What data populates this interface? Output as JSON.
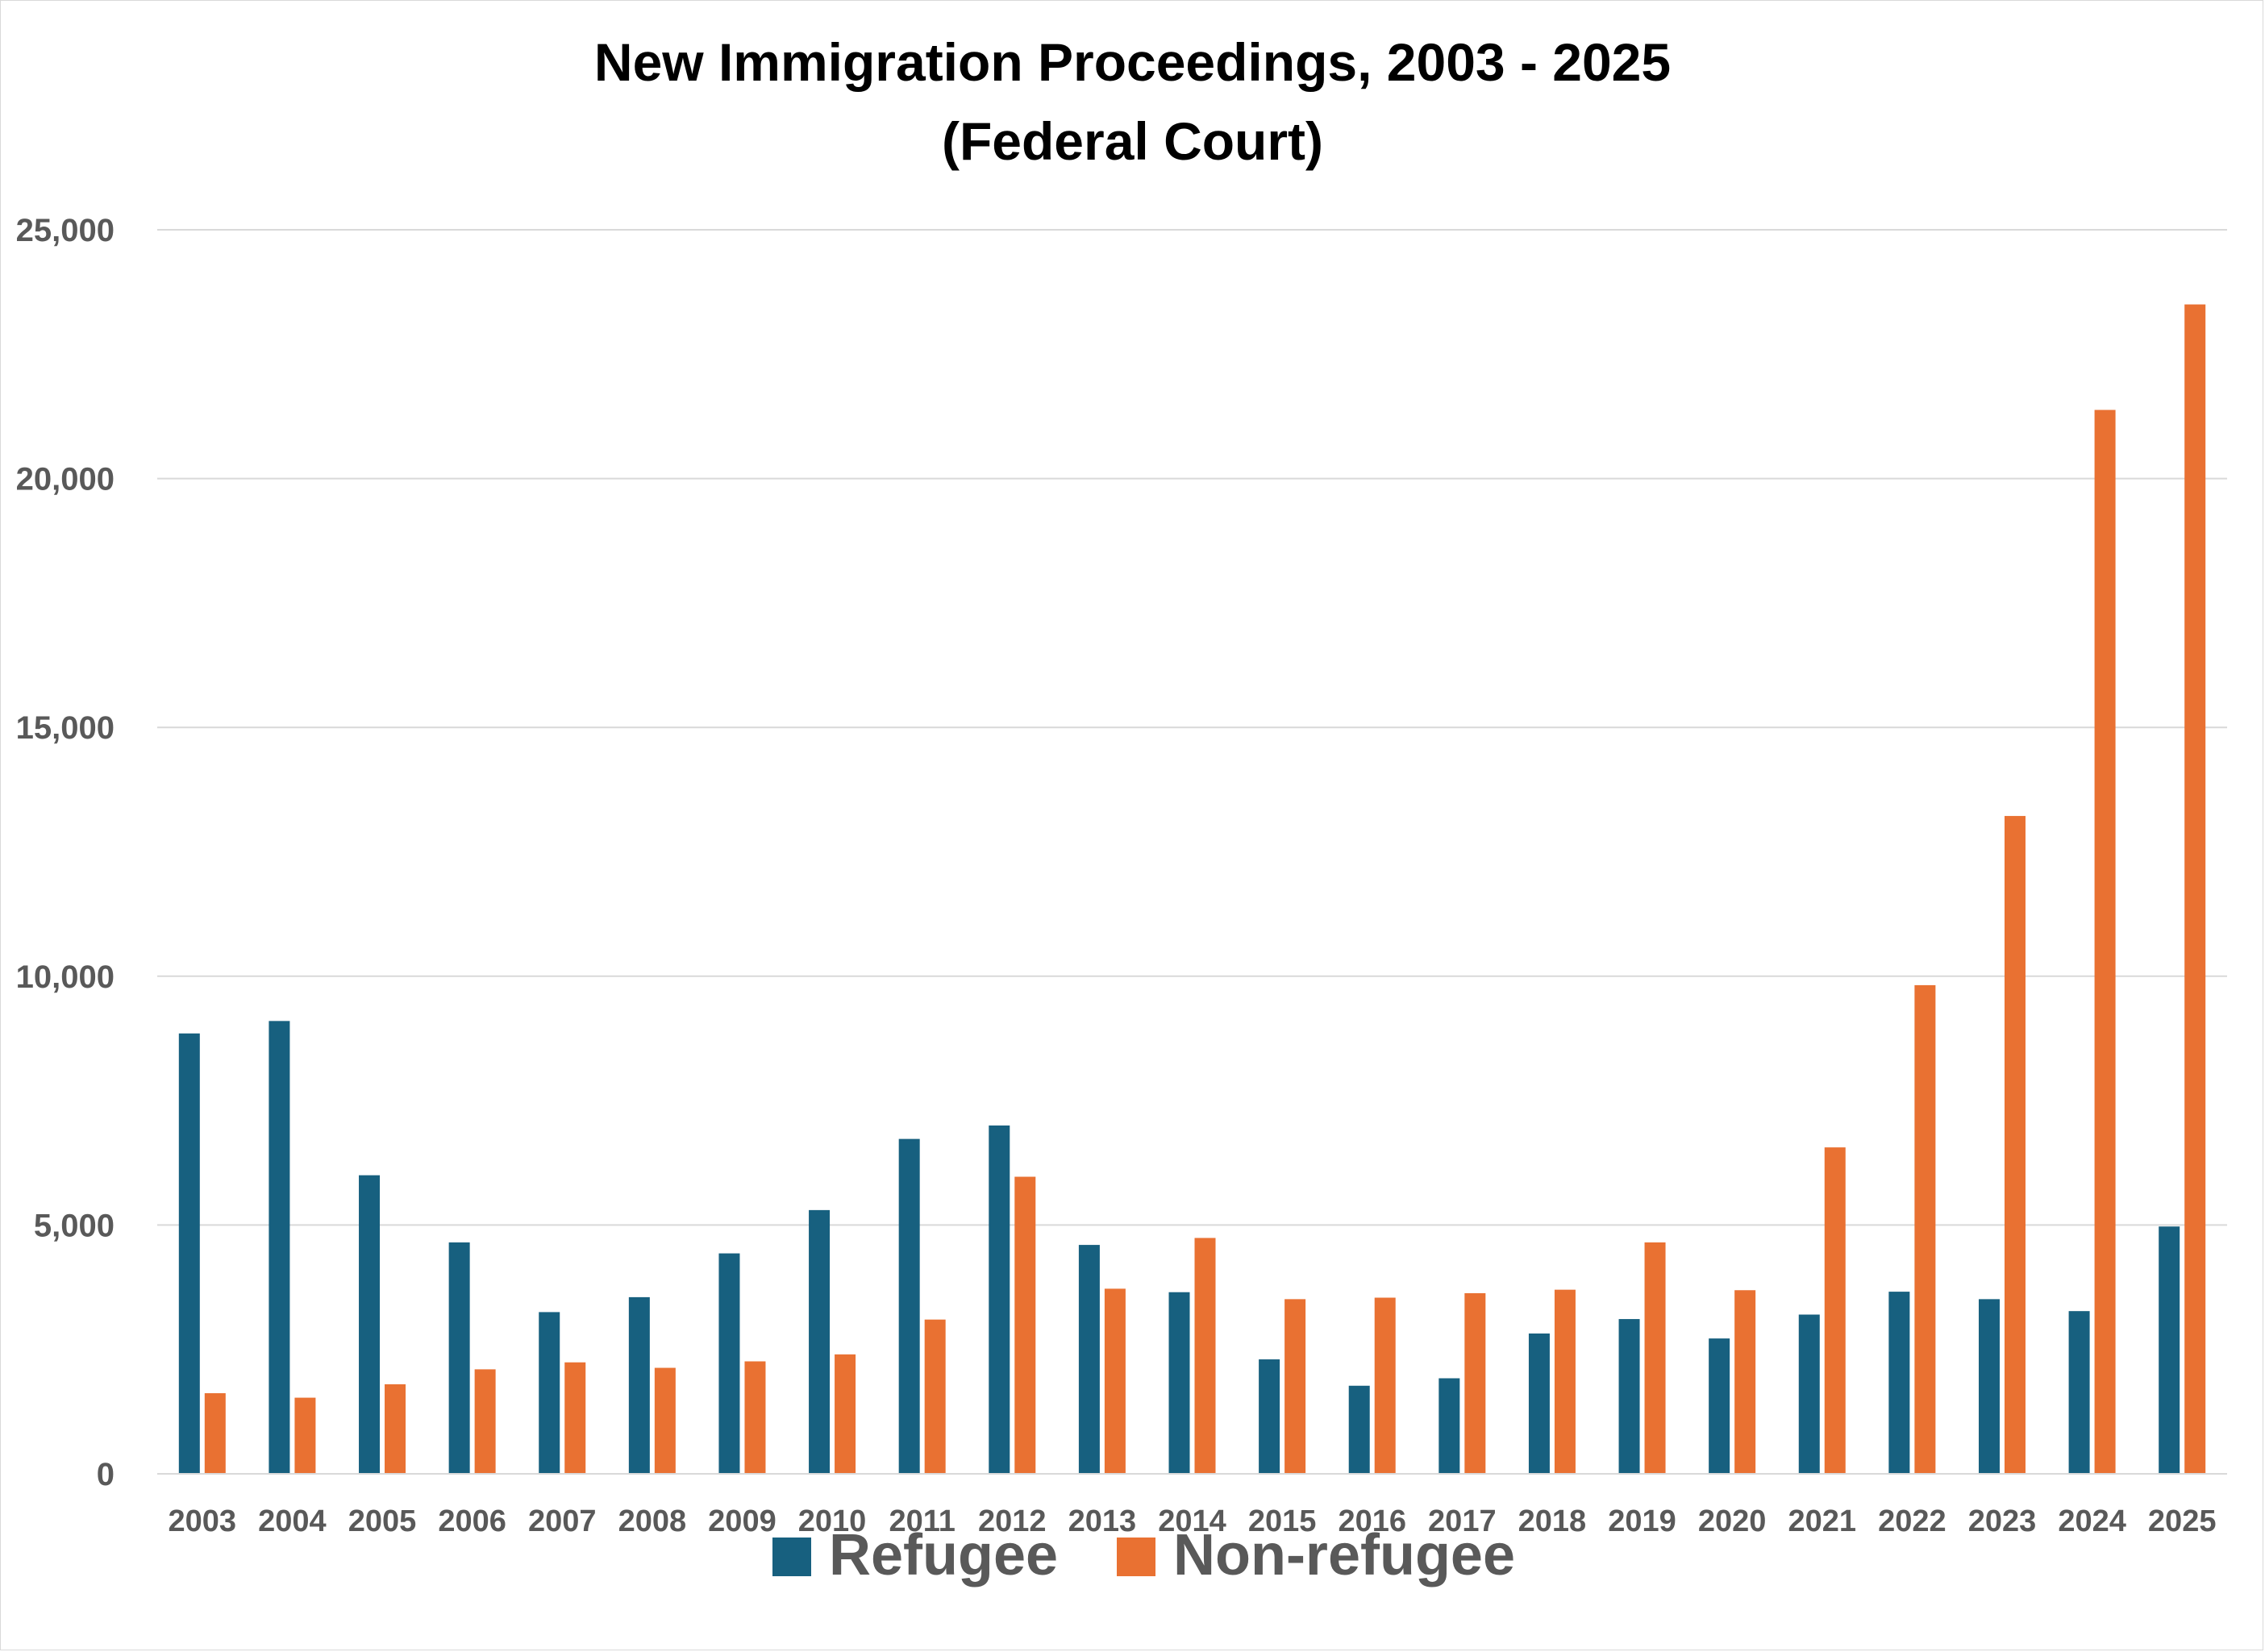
{
  "chart_data": {
    "type": "bar",
    "title": "New Immigration Proceedings, 2003 - 2025",
    "subtitle": "(Federal Court)",
    "xlabel": "",
    "ylabel": "",
    "ylim": [
      0,
      25000
    ],
    "yticks": [
      0,
      5000,
      10000,
      15000,
      20000,
      25000
    ],
    "ytick_labels": [
      "0",
      "5,000",
      "10,000",
      "15,000",
      "20,000",
      "25,000"
    ],
    "grid": true,
    "legend_position": "bottom",
    "categories": [
      "2003",
      "2004",
      "2005",
      "2006",
      "2007",
      "2008",
      "2009",
      "2010",
      "2011",
      "2012",
      "2013",
      "2014",
      "2015",
      "2016",
      "2017",
      "2018",
      "2019",
      "2020",
      "2021",
      "2022",
      "2023",
      "2024",
      "2025"
    ],
    "series": [
      {
        "name": "Refugee",
        "color": "#17607f",
        "values": [
          8850,
          9100,
          6000,
          4650,
          3250,
          3550,
          4430,
          5300,
          6730,
          7000,
          4600,
          3650,
          2300,
          1770,
          1920,
          2820,
          3110,
          2720,
          3200,
          3660,
          3510,
          3270,
          4970
        ]
      },
      {
        "name": "Non-refugee",
        "color": "#e97132",
        "values": [
          1620,
          1530,
          1800,
          2100,
          2240,
          2130,
          2260,
          2400,
          3100,
          5970,
          3720,
          4740,
          3510,
          3540,
          3630,
          3700,
          4650,
          3690,
          6560,
          9820,
          13220,
          21380,
          23500
        ]
      }
    ]
  }
}
